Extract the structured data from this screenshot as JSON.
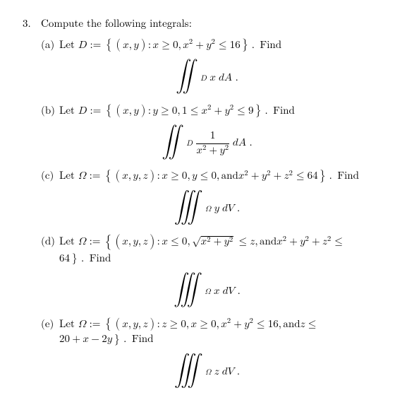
{
  "problem": {
    "number": "3.",
    "prompt": "Compute the following integrals:"
  },
  "parts": {
    "a": {
      "label": "(a)",
      "text_prefix": "Let ",
      "set_def": "D := { (x, y)  :  x ≥ 0,  x² + y² ≤ 16 }.",
      "text_suffix": " Find",
      "integral_tex": "\\iint_D x \\, dA\\,."
    },
    "b": {
      "label": "(b)",
      "text_prefix": "Let ",
      "set_def": "D := { (x, y)  :  y ≥ 0,  1 ≤ x² + y² ≤ 9 }.",
      "text_suffix": " Find",
      "integral_tex": "\\iint_D \\dfrac{1}{x^2 + y^2}\\, dA\\,."
    },
    "c": {
      "label": "(c)",
      "text_prefix": "Let ",
      "set_def": "Ω := { (x, y, z)  :  x ≥ 0,  y ≤ 0,  and  x² + y² + z² ≤ 64 }.",
      "text_suffix": " Find",
      "integral_tex": "\\iiint_\\Omega y \\, dV\\,."
    },
    "d": {
      "label": "(d)",
      "line1": "Let  Ω := { (x, y, z)  :  x ≤ 0,  √(x² + y²) ≤ z,  and  x² + y² + z² ≤",
      "line2": "64 }.  Find",
      "integral_tex": "\\iiint_\\Omega x \\, dV\\,."
    },
    "e": {
      "label": "(e)",
      "line1": "Let  Ω := { (x, y, z)   :   z ≥ 0,  x ≥ 0,  x² + y² ≤ 16,  and  z ≤",
      "line2": "20 + x − 2y }.  Find",
      "integral_tex": "\\iiint_\\Omega z \\, dV\\,."
    }
  }
}
